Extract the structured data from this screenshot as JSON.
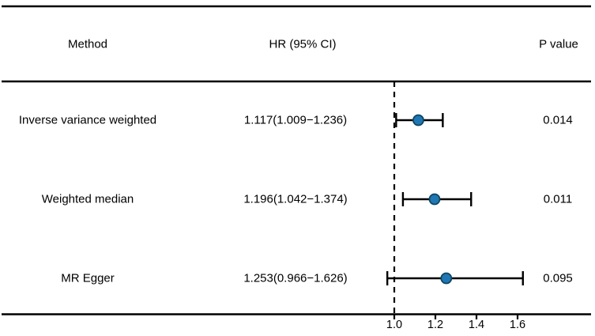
{
  "header": {
    "method": "Method",
    "hr": "HR (95% CI)",
    "pvalue": "P value"
  },
  "chart_data": {
    "type": "forest",
    "columns": [
      "Method",
      "HR (95% CI)",
      "P value"
    ],
    "rows": [
      {
        "method": "Inverse variance weighted",
        "hr_text": "1.117(1.009−1.236)",
        "hr": 1.117,
        "ci_low": 1.009,
        "ci_high": 1.236,
        "p": "0.014"
      },
      {
        "method": "Weighted median",
        "hr_text": "1.196(1.042−1.374)",
        "hr": 1.196,
        "ci_low": 1.042,
        "ci_high": 1.374,
        "p": "0.011"
      },
      {
        "method": "MR Egger",
        "hr_text": "1.253(0.966−1.626)",
        "hr": 1.253,
        "ci_low": 0.966,
        "ci_high": 1.626,
        "p": "0.095"
      }
    ],
    "x_ticks": [
      1.0,
      1.2,
      1.4,
      1.6
    ],
    "x_tick_labels": [
      "1.0",
      "1.2",
      "1.4",
      "1.6"
    ],
    "reference_line": 1.0,
    "xlim": [
      -0.91,
      1.97
    ],
    "grid": false,
    "point_color": "#1f77b4",
    "point_edge_color": "#10455f",
    "line_color": "#000000",
    "background_color": "#ffffff"
  }
}
